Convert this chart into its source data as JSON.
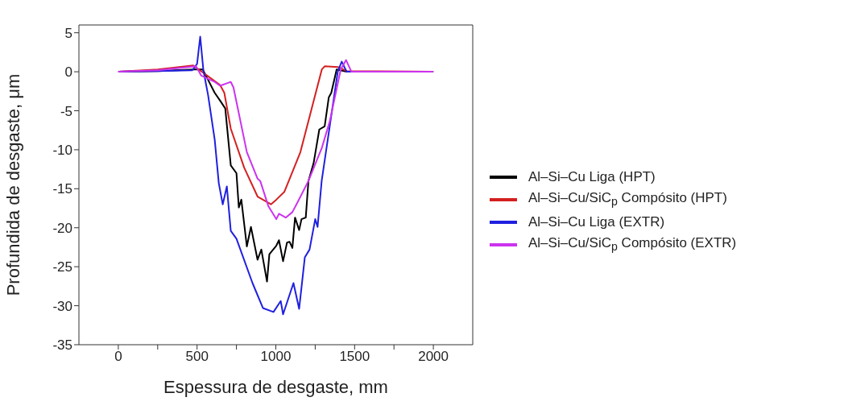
{
  "chart_data": {
    "type": "line",
    "xlabel": "Espessura de desgaste, mm",
    "ylabel": "Profundida de desgaste, μm",
    "xlim": [
      -250,
      2250
    ],
    "xticks": [
      0,
      {
        "value": 250,
        "label": null
      },
      500,
      {
        "value": 750,
        "label": null
      },
      1000,
      {
        "value": 1250,
        "label": null
      },
      1500,
      {
        "value": 1750,
        "label": null
      },
      2000
    ],
    "ylim": [
      -35,
      6
    ],
    "yticks": [
      -35,
      -30,
      -25,
      -20,
      -15,
      -10,
      -5,
      0,
      5
    ],
    "grid": false,
    "legend": "right",
    "marker": "none",
    "line_style": "solid",
    "series": [
      {
        "name": "Al–Si–Cu Liga  (HPT)",
        "color": "#000000",
        "x": [
          0,
          250,
          480,
          536,
          612,
          646,
          679,
          714,
          750,
          765,
          781,
          816,
          842,
          867,
          884,
          908,
          944,
          959,
          1003,
          1020,
          1046,
          1071,
          1087,
          1105,
          1122,
          1148,
          1163,
          1190,
          1207,
          1240,
          1276,
          1310,
          1336,
          1352,
          1386,
          1450,
          2000
        ],
        "values": [
          0,
          0.1,
          0.3,
          0.3,
          -2.7,
          -3.7,
          -4.7,
          -12,
          -13,
          -17.4,
          -16.4,
          -22.4,
          -19.9,
          -22.4,
          -24.1,
          -22.8,
          -26.9,
          -23.4,
          -22.3,
          -21.6,
          -24.3,
          -21.9,
          -21.8,
          -22.6,
          -18.7,
          -20.3,
          -18.9,
          -18.7,
          -14,
          -11.7,
          -7.4,
          -7,
          -3.3,
          -2.7,
          0.3,
          0,
          0
        ]
      },
      {
        "name": "Al–Si–Cu/SiC$_{p}$ Compósito  (HPT)",
        "color": "#d42020",
        "x": [
          0,
          250,
          476,
          544,
          646,
          673,
          714,
          799,
          884,
          969,
          1003,
          1054,
          1088,
          1156,
          1224,
          1292,
          1310,
          1394,
          1450,
          2000
        ],
        "values": [
          0,
          0.3,
          0.8,
          -0.2,
          -1.7,
          -2.7,
          -7.3,
          -12.3,
          -16,
          -17,
          -16.4,
          -15.4,
          -13.7,
          -10.3,
          -5,
          0.3,
          0.7,
          0.6,
          0.1,
          0
        ]
      },
      {
        "name": "Al–Si–Cu  Liga (EXTR)",
        "color": "#2020e0",
        "x": [
          0,
          250,
          470,
          500,
          520,
          540,
          570,
          612,
          638,
          663,
          689,
          714,
          750,
          852,
          918,
          985,
          1031,
          1046,
          1112,
          1148,
          1184,
          1214,
          1250,
          1265,
          1291,
          1393,
          1418,
          1450,
          2000
        ],
        "values": [
          0,
          0.1,
          0.2,
          1,
          4.5,
          0.2,
          -3,
          -8.7,
          -14.3,
          -17,
          -14.7,
          -20.4,
          -21.4,
          -27.1,
          -30.3,
          -30.8,
          -29.4,
          -31.1,
          -27.1,
          -30.4,
          -23.8,
          -22.8,
          -18.9,
          -19.9,
          -14,
          0,
          1.3,
          0,
          0
        ]
      },
      {
        "name": "Al–Si–Cu/SiC$_{p}$ Compósito (EXTR)",
        "color": "#cc33ee",
        "x": [
          0,
          250,
          493,
          527,
          612,
          646,
          714,
          731,
          816,
          884,
          901,
          952,
          1003,
          1020,
          1063,
          1105,
          1139,
          1207,
          1293,
          1343,
          1412,
          1446,
          1480,
          2000
        ],
        "values": [
          0,
          0.2,
          0.7,
          -0.5,
          -1.3,
          -1.8,
          -1.3,
          -2,
          -10.3,
          -13.7,
          -14,
          -17.2,
          -18.9,
          -18.2,
          -18.7,
          -18,
          -16.7,
          -14,
          -9.7,
          -6.3,
          0.3,
          1.5,
          0,
          0
        ]
      }
    ]
  }
}
